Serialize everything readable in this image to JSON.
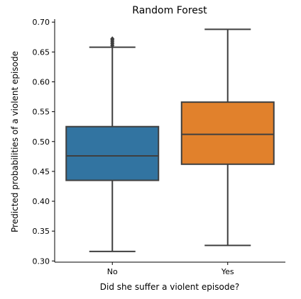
{
  "chart_data": {
    "type": "box",
    "title": "Random Forest",
    "xlabel": "Did she suffer a violent episode?",
    "ylabel": "Predicted probabilities of a violent episode",
    "ylim": [
      0.298,
      0.705
    ],
    "yticks": [
      0.3,
      0.35,
      0.4,
      0.45,
      0.5,
      0.55,
      0.6,
      0.65,
      0.7
    ],
    "grid": false,
    "categories": [
      "No",
      "Yes"
    ],
    "boxes": [
      {
        "category": "No",
        "whisker_low": 0.316,
        "q1": 0.435,
        "median": 0.476,
        "q3": 0.525,
        "whisker_high": 0.658,
        "outliers": [
          0.661,
          0.664,
          0.667,
          0.67,
          0.672
        ],
        "color": "#3274a1"
      },
      {
        "category": "Yes",
        "whisker_low": 0.326,
        "q1": 0.462,
        "median": 0.512,
        "q3": 0.566,
        "whisker_high": 0.688,
        "outliers": [],
        "color": "#e1812c"
      }
    ],
    "line_color": "#3f3f3f"
  }
}
